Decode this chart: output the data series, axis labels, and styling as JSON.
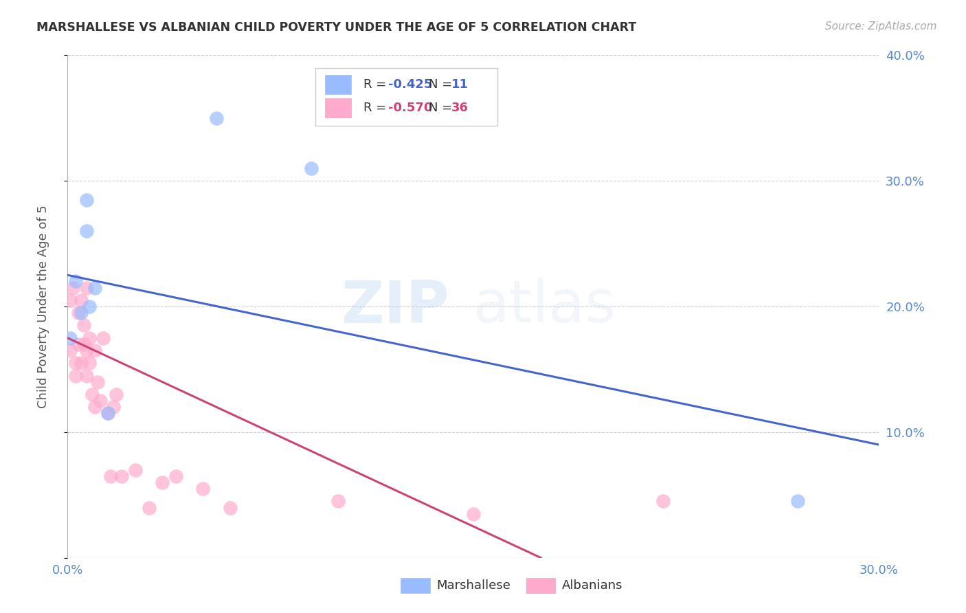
{
  "title": "MARSHALLESE VS ALBANIAN CHILD POVERTY UNDER THE AGE OF 5 CORRELATION CHART",
  "source": "Source: ZipAtlas.com",
  "ylabel": "Child Poverty Under the Age of 5",
  "xlim": [
    0.0,
    0.3
  ],
  "ylim": [
    0.0,
    0.4
  ],
  "xticks": [
    0.0,
    0.05,
    0.1,
    0.15,
    0.2,
    0.25,
    0.3
  ],
  "yticks": [
    0.0,
    0.1,
    0.2,
    0.3,
    0.4
  ],
  "ytick_labels": [
    "",
    "10.0%",
    "20.0%",
    "30.0%",
    "40.0%"
  ],
  "xtick_labels": [
    "0.0%",
    "",
    "",
    "",
    "",
    "",
    "30.0%"
  ],
  "grid_color": "#cccccc",
  "background_color": "#ffffff",
  "watermark_zip": "ZIP",
  "watermark_atlas": "atlas",
  "marshallese_color": "#99bbff",
  "albanians_color": "#ffaacc",
  "marshallese_line_color": "#4466cc",
  "albanians_line_color": "#cc4477",
  "marshallese_R": "-0.425",
  "marshallese_N": "11",
  "albanians_R": "-0.570",
  "albanians_N": "36",
  "tick_color": "#5588cc",
  "marshallese_scatter_x": [
    0.001,
    0.003,
    0.005,
    0.007,
    0.007,
    0.008,
    0.01,
    0.015,
    0.055,
    0.09,
    0.27
  ],
  "marshallese_scatter_y": [
    0.175,
    0.22,
    0.195,
    0.285,
    0.26,
    0.2,
    0.215,
    0.115,
    0.35,
    0.31,
    0.045
  ],
  "albanians_scatter_x": [
    0.001,
    0.001,
    0.002,
    0.003,
    0.003,
    0.004,
    0.004,
    0.005,
    0.005,
    0.006,
    0.006,
    0.007,
    0.007,
    0.007,
    0.008,
    0.008,
    0.009,
    0.01,
    0.01,
    0.011,
    0.012,
    0.013,
    0.015,
    0.016,
    0.017,
    0.018,
    0.02,
    0.025,
    0.03,
    0.035,
    0.04,
    0.05,
    0.06,
    0.1,
    0.15,
    0.22
  ],
  "albanians_scatter_y": [
    0.165,
    0.205,
    0.215,
    0.155,
    0.145,
    0.195,
    0.17,
    0.205,
    0.155,
    0.185,
    0.17,
    0.215,
    0.165,
    0.145,
    0.175,
    0.155,
    0.13,
    0.165,
    0.12,
    0.14,
    0.125,
    0.175,
    0.115,
    0.065,
    0.12,
    0.13,
    0.065,
    0.07,
    0.04,
    0.06,
    0.065,
    0.055,
    0.04,
    0.045,
    0.035,
    0.045
  ],
  "blue_line_x": [
    0.0,
    0.3
  ],
  "blue_line_y": [
    0.225,
    0.09
  ],
  "pink_line_x": [
    0.0,
    0.175
  ],
  "pink_line_y": [
    0.175,
    0.0
  ]
}
